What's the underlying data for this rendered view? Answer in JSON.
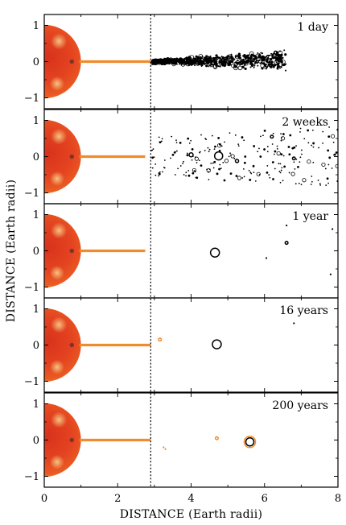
{
  "chart_data": {
    "type": "scatter",
    "xlabel": "DISTANCE  (Earth radii)",
    "ylabel": "DISTANCE  (Earth radii)",
    "xlim": [
      0,
      8
    ],
    "ylim": [
      -1.3,
      1.3
    ],
    "x_ticks": [
      "0",
      "2",
      "4",
      "6",
      "8"
    ],
    "y_ticks": [
      "1",
      "0",
      "−1"
    ],
    "roche_limit_x": 2.9,
    "colors": {
      "earth_outer": "#e8421a",
      "earth_inner": "#c8281c",
      "orange": "#f08c2c",
      "black": "#000000",
      "dotted_line": "#000000"
    },
    "panels": [
      {
        "label": "1 day",
        "tail_end_x": 2.9,
        "debris_band": {
          "x_start": 2.95,
          "x_end": 6.6,
          "y_half_width_start": 0.05,
          "y_half_width_end": 0.32,
          "count": 900
        },
        "moons": [
          {
            "x": 6.3,
            "y": 0.25,
            "r": 0.07
          }
        ]
      },
      {
        "label": "2 weeks",
        "tail_end_x": 2.75,
        "debris_band": {
          "x_start": 2.9,
          "x_end": 8.0,
          "y_half_width_start": 0.55,
          "y_half_width_end": 0.85,
          "count": 220
        },
        "moons": [
          {
            "x": 4.75,
            "y": 0.02,
            "r": 0.2
          },
          {
            "x": 4.0,
            "y": 0.05,
            "r": 0.1
          },
          {
            "x": 5.25,
            "y": -0.12,
            "r": 0.08
          },
          {
            "x": 6.8,
            "y": -0.05,
            "r": 0.06
          },
          {
            "x": 6.2,
            "y": 0.55,
            "r": 0.04
          }
        ]
      },
      {
        "label": "1 year",
        "tail_end_x": 2.75,
        "debris_band": null,
        "moons": [
          {
            "x": 4.65,
            "y": -0.05,
            "r": 0.22
          },
          {
            "x": 6.6,
            "y": 0.22,
            "r": 0.05
          }
        ],
        "dots": [
          {
            "x": 6.6,
            "y": 0.7
          },
          {
            "x": 6.05,
            "y": -0.2
          },
          {
            "x": 7.8,
            "y": -0.65
          },
          {
            "x": 7.85,
            "y": 0.6
          }
        ]
      },
      {
        "label": "16 years",
        "tail_end_x": 2.9,
        "debris_band": null,
        "moons": [
          {
            "x": 4.7,
            "y": 0.02,
            "r": 0.22
          },
          {
            "x": 3.15,
            "y": 0.15,
            "r": 0.06,
            "color": "orange"
          }
        ],
        "dots": [
          {
            "x": 6.8,
            "y": 0.6
          }
        ]
      },
      {
        "label": "200 years",
        "tail_end_x": 2.9,
        "debris_band": null,
        "moons": [
          {
            "x": 5.6,
            "y": -0.05,
            "r": 0.28,
            "color": "orange"
          },
          {
            "x": 5.6,
            "y": -0.05,
            "r": 0.2
          },
          {
            "x": 4.7,
            "y": 0.05,
            "r": 0.06,
            "color": "orange"
          }
        ],
        "dots": [
          {
            "x": 3.25,
            "y": -0.2,
            "color": "orange"
          },
          {
            "x": 3.3,
            "y": -0.25,
            "color": "orange"
          }
        ]
      }
    ]
  }
}
